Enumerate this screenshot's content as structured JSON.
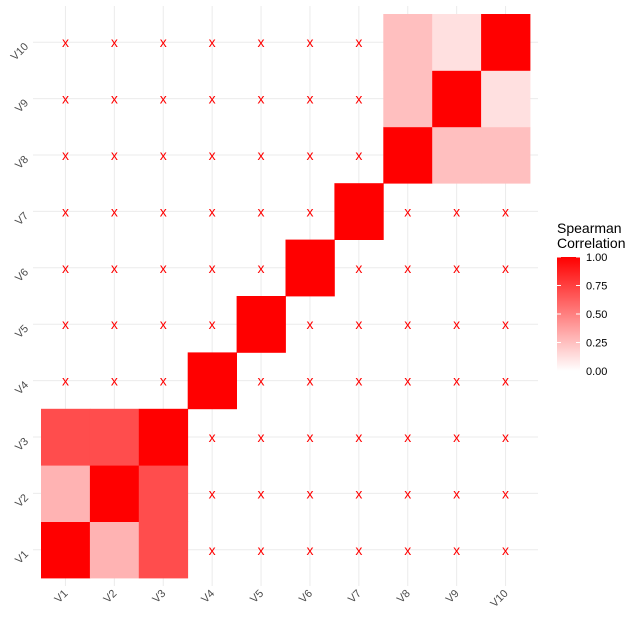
{
  "chart_data": {
    "type": "heatmap",
    "x_labels": [
      "V1",
      "V2",
      "V3",
      "V4",
      "V5",
      "V6",
      "V7",
      "V8",
      "V9",
      "V10"
    ],
    "y_labels": [
      "V1",
      "V2",
      "V3",
      "V4",
      "V5",
      "V6",
      "V7",
      "V8",
      "V9",
      "V10"
    ],
    "cells": [
      {
        "x": "V1",
        "y": "V1",
        "value": 1.0
      },
      {
        "x": "V2",
        "y": "V1",
        "value": 0.3
      },
      {
        "x": "V3",
        "y": "V1",
        "value": 0.7
      },
      {
        "x": "V1",
        "y": "V2",
        "value": 0.3
      },
      {
        "x": "V2",
        "y": "V2",
        "value": 1.0
      },
      {
        "x": "V3",
        "y": "V2",
        "value": 0.7
      },
      {
        "x": "V1",
        "y": "V3",
        "value": 0.7
      },
      {
        "x": "V2",
        "y": "V3",
        "value": 0.7
      },
      {
        "x": "V3",
        "y": "V3",
        "value": 1.0
      },
      {
        "x": "V4",
        "y": "V4",
        "value": 1.0
      },
      {
        "x": "V5",
        "y": "V5",
        "value": 1.0
      },
      {
        "x": "V6",
        "y": "V6",
        "value": 1.0
      },
      {
        "x": "V7",
        "y": "V7",
        "value": 1.0
      },
      {
        "x": "V8",
        "y": "V8",
        "value": 1.0
      },
      {
        "x": "V9",
        "y": "V8",
        "value": 0.25
      },
      {
        "x": "V10",
        "y": "V8",
        "value": 0.25
      },
      {
        "x": "V8",
        "y": "V9",
        "value": 0.25
      },
      {
        "x": "V9",
        "y": "V9",
        "value": 1.0
      },
      {
        "x": "V10",
        "y": "V9",
        "value": 0.12
      },
      {
        "x": "V8",
        "y": "V10",
        "value": 0.25
      },
      {
        "x": "V9",
        "y": "V10",
        "value": 0.12
      },
      {
        "x": "V10",
        "y": "V10",
        "value": 1.0
      }
    ],
    "insignificant_marker": "x",
    "insignificant_cells": [
      {
        "x": "V4",
        "y": "V1"
      },
      {
        "x": "V5",
        "y": "V1"
      },
      {
        "x": "V6",
        "y": "V1"
      },
      {
        "x": "V7",
        "y": "V1"
      },
      {
        "x": "V8",
        "y": "V1"
      },
      {
        "x": "V9",
        "y": "V1"
      },
      {
        "x": "V10",
        "y": "V1"
      },
      {
        "x": "V4",
        "y": "V2"
      },
      {
        "x": "V5",
        "y": "V2"
      },
      {
        "x": "V6",
        "y": "V2"
      },
      {
        "x": "V7",
        "y": "V2"
      },
      {
        "x": "V8",
        "y": "V2"
      },
      {
        "x": "V9",
        "y": "V2"
      },
      {
        "x": "V10",
        "y": "V2"
      },
      {
        "x": "V4",
        "y": "V3"
      },
      {
        "x": "V5",
        "y": "V3"
      },
      {
        "x": "V6",
        "y": "V3"
      },
      {
        "x": "V7",
        "y": "V3"
      },
      {
        "x": "V8",
        "y": "V3"
      },
      {
        "x": "V9",
        "y": "V3"
      },
      {
        "x": "V10",
        "y": "V3"
      },
      {
        "x": "V1",
        "y": "V4"
      },
      {
        "x": "V2",
        "y": "V4"
      },
      {
        "x": "V3",
        "y": "V4"
      },
      {
        "x": "V5",
        "y": "V4"
      },
      {
        "x": "V6",
        "y": "V4"
      },
      {
        "x": "V7",
        "y": "V4"
      },
      {
        "x": "V8",
        "y": "V4"
      },
      {
        "x": "V9",
        "y": "V4"
      },
      {
        "x": "V10",
        "y": "V4"
      },
      {
        "x": "V1",
        "y": "V5"
      },
      {
        "x": "V2",
        "y": "V5"
      },
      {
        "x": "V3",
        "y": "V5"
      },
      {
        "x": "V4",
        "y": "V5"
      },
      {
        "x": "V6",
        "y": "V5"
      },
      {
        "x": "V7",
        "y": "V5"
      },
      {
        "x": "V8",
        "y": "V5"
      },
      {
        "x": "V9",
        "y": "V5"
      },
      {
        "x": "V10",
        "y": "V5"
      },
      {
        "x": "V1",
        "y": "V6"
      },
      {
        "x": "V2",
        "y": "V6"
      },
      {
        "x": "V3",
        "y": "V6"
      },
      {
        "x": "V4",
        "y": "V6"
      },
      {
        "x": "V5",
        "y": "V6"
      },
      {
        "x": "V7",
        "y": "V6"
      },
      {
        "x": "V8",
        "y": "V6"
      },
      {
        "x": "V9",
        "y": "V6"
      },
      {
        "x": "V10",
        "y": "V6"
      },
      {
        "x": "V1",
        "y": "V7"
      },
      {
        "x": "V2",
        "y": "V7"
      },
      {
        "x": "V3",
        "y": "V7"
      },
      {
        "x": "V4",
        "y": "V7"
      },
      {
        "x": "V5",
        "y": "V7"
      },
      {
        "x": "V6",
        "y": "V7"
      },
      {
        "x": "V8",
        "y": "V7"
      },
      {
        "x": "V9",
        "y": "V7"
      },
      {
        "x": "V10",
        "y": "V7"
      },
      {
        "x": "V1",
        "y": "V8"
      },
      {
        "x": "V2",
        "y": "V8"
      },
      {
        "x": "V3",
        "y": "V8"
      },
      {
        "x": "V4",
        "y": "V8"
      },
      {
        "x": "V5",
        "y": "V8"
      },
      {
        "x": "V6",
        "y": "V8"
      },
      {
        "x": "V7",
        "y": "V8"
      },
      {
        "x": "V1",
        "y": "V9"
      },
      {
        "x": "V2",
        "y": "V9"
      },
      {
        "x": "V3",
        "y": "V9"
      },
      {
        "x": "V4",
        "y": "V9"
      },
      {
        "x": "V5",
        "y": "V9"
      },
      {
        "x": "V6",
        "y": "V9"
      },
      {
        "x": "V7",
        "y": "V9"
      },
      {
        "x": "V1",
        "y": "V10"
      },
      {
        "x": "V2",
        "y": "V10"
      },
      {
        "x": "V3",
        "y": "V10"
      },
      {
        "x": "V4",
        "y": "V10"
      },
      {
        "x": "V5",
        "y": "V10"
      },
      {
        "x": "V6",
        "y": "V10"
      },
      {
        "x": "V7",
        "y": "V10"
      }
    ],
    "color_scale": {
      "low": "#ffffff",
      "high": "#ff0000",
      "range": [
        0,
        1
      ]
    },
    "marker_color": "#ff0000",
    "legend": {
      "title_lines": [
        "Spearman",
        "Correlation"
      ],
      "ticks": [
        1.0,
        0.75,
        0.5,
        0.25,
        0.0
      ],
      "tick_labels": [
        "1.00",
        "0.75",
        "0.50",
        "0.25",
        "0.00"
      ],
      "position": "right"
    },
    "grid": true,
    "title": "",
    "xlabel": "",
    "ylabel": ""
  }
}
